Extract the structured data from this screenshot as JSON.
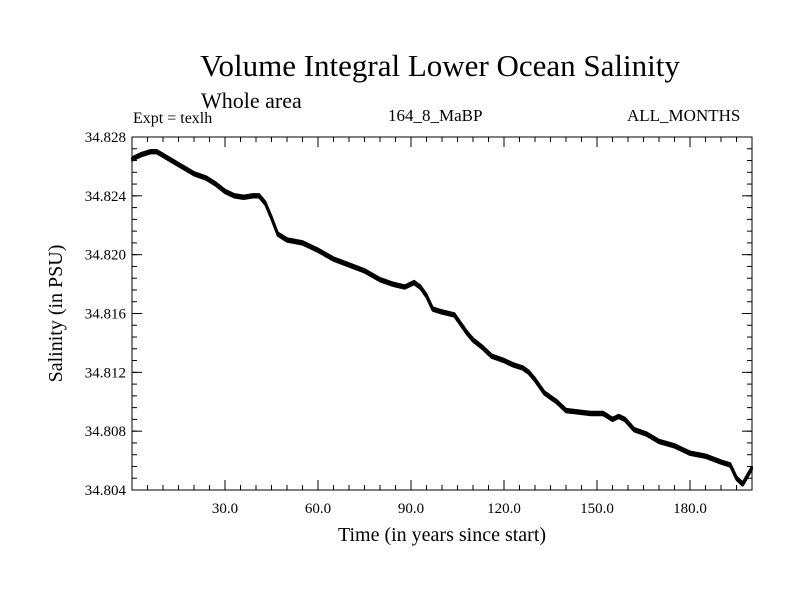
{
  "header": {
    "title": "Volume Integral Lower Ocean Salinity",
    "subtitle": "Whole area",
    "experiment": "Expt = texlh",
    "run_id": "164_8_MaBP",
    "months": "ALL_MONTHS"
  },
  "chart_data": {
    "type": "line",
    "title": "Volume Integral Lower Ocean Salinity",
    "xlabel": "Time (in years since start)",
    "ylabel": "Salinity (in PSU)",
    "xlim": [
      0,
      200
    ],
    "ylim": [
      34.804,
      34.828
    ],
    "xticks": [
      30,
      60,
      90,
      120,
      150,
      180
    ],
    "xtick_labels": [
      "30.0",
      "60.0",
      "90.0",
      "120.0",
      "150.0",
      "180.0"
    ],
    "yticks": [
      34.804,
      34.808,
      34.812,
      34.816,
      34.82,
      34.824,
      34.828
    ],
    "ytick_labels": [
      "34.804",
      "34.808",
      "34.812",
      "34.816",
      "34.820",
      "34.824",
      "34.828"
    ],
    "grid": false,
    "series": [
      {
        "name": "salinity",
        "x": [
          0,
          3,
          6,
          8,
          12,
          16,
          20,
          24,
          27,
          30,
          33,
          36,
          39,
          41,
          43,
          45,
          47,
          50,
          55,
          60,
          65,
          70,
          75,
          80,
          84,
          88,
          91,
          93,
          95,
          97,
          100,
          104,
          106,
          108,
          110,
          113,
          116,
          120,
          123,
          126,
          128,
          130,
          133,
          137,
          140,
          144,
          148,
          152,
          155,
          157,
          159,
          162,
          166,
          170,
          175,
          180,
          185,
          190,
          193,
          195,
          197,
          200
        ],
        "y": [
          34.8265,
          34.8268,
          34.827,
          34.827,
          34.8265,
          34.826,
          34.8255,
          34.8252,
          34.8248,
          34.8243,
          34.824,
          34.8239,
          34.824,
          34.824,
          34.8235,
          34.8225,
          34.8214,
          34.821,
          34.8208,
          34.8203,
          34.8197,
          34.8193,
          34.8189,
          34.8183,
          34.818,
          34.8178,
          34.8181,
          34.8178,
          34.8172,
          34.8163,
          34.8161,
          34.8159,
          34.8153,
          34.8147,
          34.8142,
          34.8137,
          34.8131,
          34.8128,
          34.8125,
          34.8123,
          34.812,
          34.8115,
          34.8106,
          34.81,
          34.8094,
          34.8093,
          34.8092,
          34.8092,
          34.8088,
          34.809,
          34.8088,
          34.8081,
          34.8078,
          34.8073,
          34.807,
          34.8065,
          34.8063,
          34.8059,
          34.8057,
          34.8048,
          34.8044,
          34.8055
        ]
      }
    ]
  }
}
